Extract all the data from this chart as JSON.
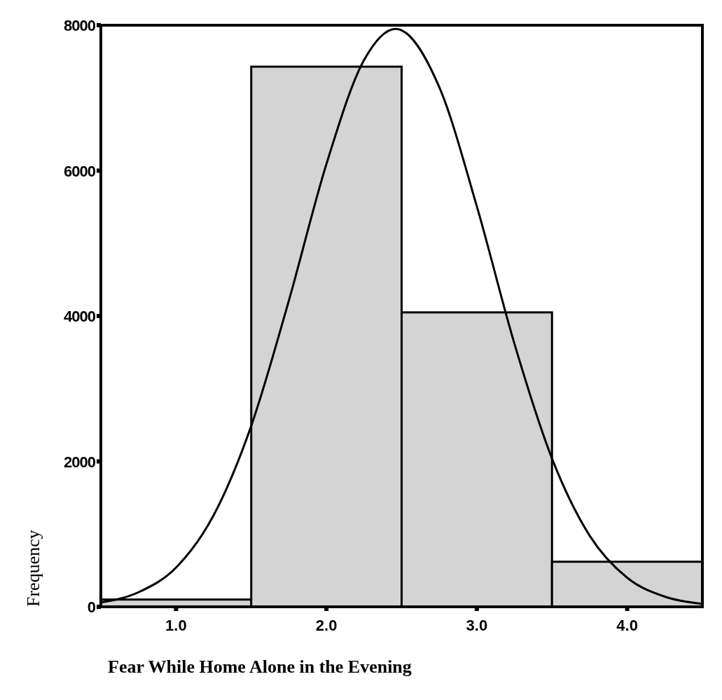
{
  "chart_data": {
    "type": "histogram",
    "xlabel": "Fear While Home Alone in the Evening",
    "ylabel": "Frequency",
    "bins": [
      0.5,
      1.5,
      2.5,
      3.5,
      4.5
    ],
    "values": [
      100,
      7430,
      4050,
      620
    ],
    "color": "#d4d4d4",
    "series": [
      {
        "type": "line",
        "color": "#000000",
        "x": [
          0.5,
          0.75,
          1.0,
          1.25,
          1.5,
          1.75,
          2.0,
          2.25,
          2.46,
          2.75,
          3.0,
          3.25,
          3.5,
          3.75,
          4.0,
          4.25,
          4.5
        ],
        "values": [
          60,
          200,
          540,
          1260,
          2490,
          4210,
          6090,
          7520,
          7950,
          7150,
          5510,
          3620,
          2040,
          980,
          400,
          140,
          40
        ]
      }
    ],
    "xlim": [
      0.5,
      4.5
    ],
    "ylim": [
      0,
      8000
    ],
    "xticks": [
      {
        "value": 1,
        "label": "1.0"
      },
      {
        "value": 2,
        "label": "2.0"
      },
      {
        "value": 3,
        "label": "3.0"
      },
      {
        "value": 4,
        "label": "4.0"
      }
    ],
    "yticks": [
      0,
      2000,
      4000,
      6000,
      8000
    ],
    "grid": false,
    "marker": "none",
    "line_style": "solid"
  }
}
